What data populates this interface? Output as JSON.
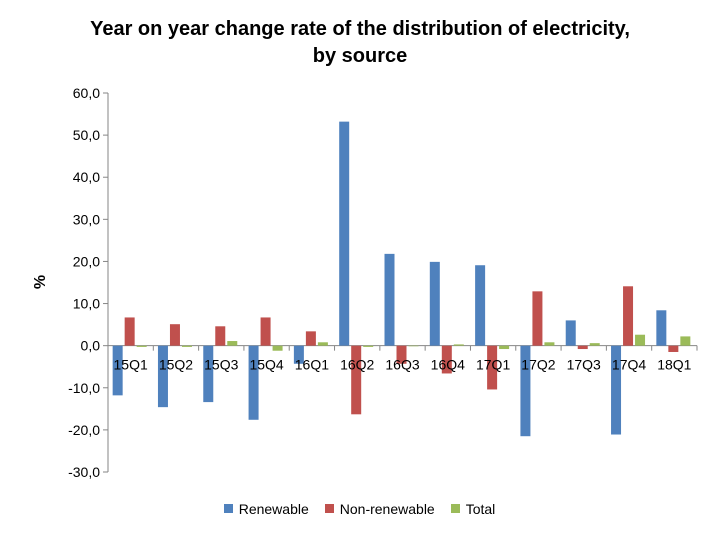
{
  "chart_data": {
    "type": "bar",
    "title": "Year on year change rate of the distribution of electricity, by source",
    "ylabel": "%",
    "xlabel": "",
    "ylim": [
      -30,
      60
    ],
    "yticks": [
      "60,0",
      "50,0",
      "40,0",
      "30,0",
      "20,0",
      "10,0",
      "0,0",
      "-10,0",
      "-20,0",
      "-30,0"
    ],
    "categories": [
      "15Q1",
      "15Q2",
      "15Q3",
      "15Q4",
      "16Q1",
      "16Q2",
      "16Q3",
      "16Q4",
      "17Q1",
      "17Q2",
      "17Q3",
      "17Q4",
      "18Q1"
    ],
    "series": [
      {
        "name": "Renewable",
        "color": "#4F81BD",
        "values": [
          -11.8,
          -14.6,
          -13.4,
          -17.6,
          -4.3,
          53.2,
          21.8,
          19.9,
          19.1,
          -21.5,
          6.0,
          -21.1,
          8.4
        ]
      },
      {
        "name": "Non-renewable",
        "color": "#C0504D",
        "values": [
          6.7,
          5.1,
          4.6,
          6.7,
          3.4,
          -16.3,
          -4.3,
          -6.6,
          -10.4,
          12.9,
          -0.8,
          14.1,
          -1.5
        ]
      },
      {
        "name": "Total",
        "color": "#9BBB59",
        "values": [
          -0.3,
          -0.3,
          1.1,
          -1.2,
          0.8,
          -0.3,
          0.0,
          0.3,
          -0.8,
          0.8,
          0.6,
          2.6,
          2.2
        ]
      }
    ],
    "grid": false,
    "legend_position": "bottom"
  }
}
